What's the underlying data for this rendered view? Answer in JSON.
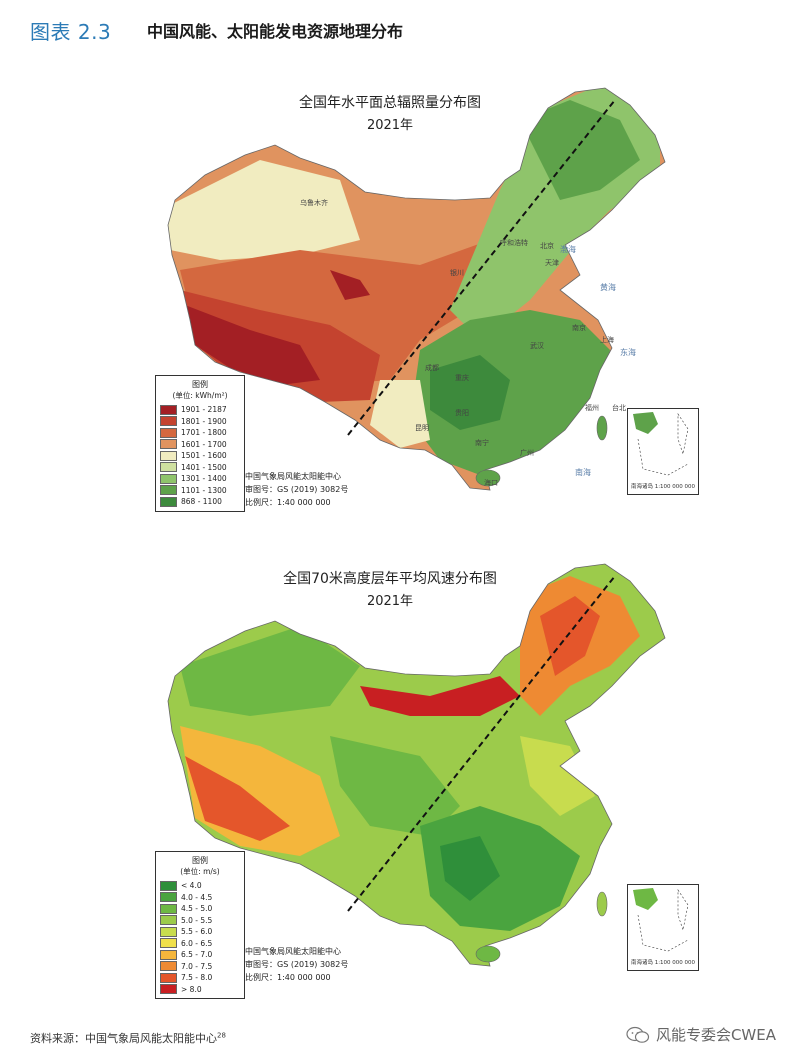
{
  "header": {
    "figure_number": "图表 2.3",
    "figure_title": "中国风能、太阳能发电资源地理分布"
  },
  "map_solar": {
    "title": "全国年水平面总辐照量分布图",
    "year": "2021年",
    "legend": {
      "title": "图例",
      "unit": "(单位: kWh/m²)",
      "items": [
        {
          "label": "1901 - 2187",
          "color": "#a31f24"
        },
        {
          "label": "1801 - 1900",
          "color": "#c4432f"
        },
        {
          "label": "1701 - 1800",
          "color": "#d4683f"
        },
        {
          "label": "1601 - 1700",
          "color": "#e0935f"
        },
        {
          "label": "1501 - 1600",
          "color": "#f1ecc0"
        },
        {
          "label": "1401 - 1500",
          "color": "#cfe0a0"
        },
        {
          "label": "1301 - 1400",
          "color": "#8fc46b"
        },
        {
          "label": "1101 - 1300",
          "color": "#5ea24a"
        },
        {
          "label": "868 - 1100",
          "color": "#3d8a3c"
        }
      ]
    },
    "credit": {
      "org": "中国气象局风能太阳能中心",
      "map_no": "审图号：GS (2019) 3082号",
      "scale": "比例尺：1:40 000 000"
    },
    "cities": [
      "乌鲁木齐",
      "呼和浩特",
      "北京",
      "天津",
      "银川",
      "成都",
      "重庆",
      "贵阳",
      "昆明",
      "南宁",
      "广州",
      "海口",
      "台北",
      "福州",
      "上海",
      "南京",
      "武汉"
    ],
    "seas": [
      "东海",
      "南海",
      "渤海",
      "黄海"
    ],
    "inset_label": "南海诸岛 1:100 000 000"
  },
  "map_wind": {
    "title": "全国70米高度层年平均风速分布图",
    "year": "2021年",
    "legend": {
      "title": "图例",
      "unit": "(单位: m/s)",
      "items": [
        {
          "label": "< 4.0",
          "color": "#2f8f3a"
        },
        {
          "label": "4.0 - 4.5",
          "color": "#4aa43f"
        },
        {
          "label": "4.5 - 5.0",
          "color": "#6eb844"
        },
        {
          "label": "5.0 - 5.5",
          "color": "#9ccb4b"
        },
        {
          "label": "5.5 - 6.0",
          "color": "#c8dc4e"
        },
        {
          "label": "6.0 - 6.5",
          "color": "#f0e04a"
        },
        {
          "label": "6.5 - 7.0",
          "color": "#f4b63c"
        },
        {
          "label": "7.0 - 7.5",
          "color": "#ee8a33"
        },
        {
          "label": "7.5 - 8.0",
          "color": "#e4562b"
        },
        {
          "label": "> 8.0",
          "color": "#c81f22"
        }
      ]
    },
    "credit": {
      "org": "中国气象局风能太阳能中心",
      "map_no": "审图号：GS (2019) 3082号",
      "scale": "比例尺：1:40 000 000"
    },
    "inset_label": "南海诸岛 1:100 000 000"
  },
  "footer": {
    "source": "资料来源：中国气象局风能太阳能中心",
    "source_note": "28",
    "watermark": "风能专委会CWEA"
  }
}
